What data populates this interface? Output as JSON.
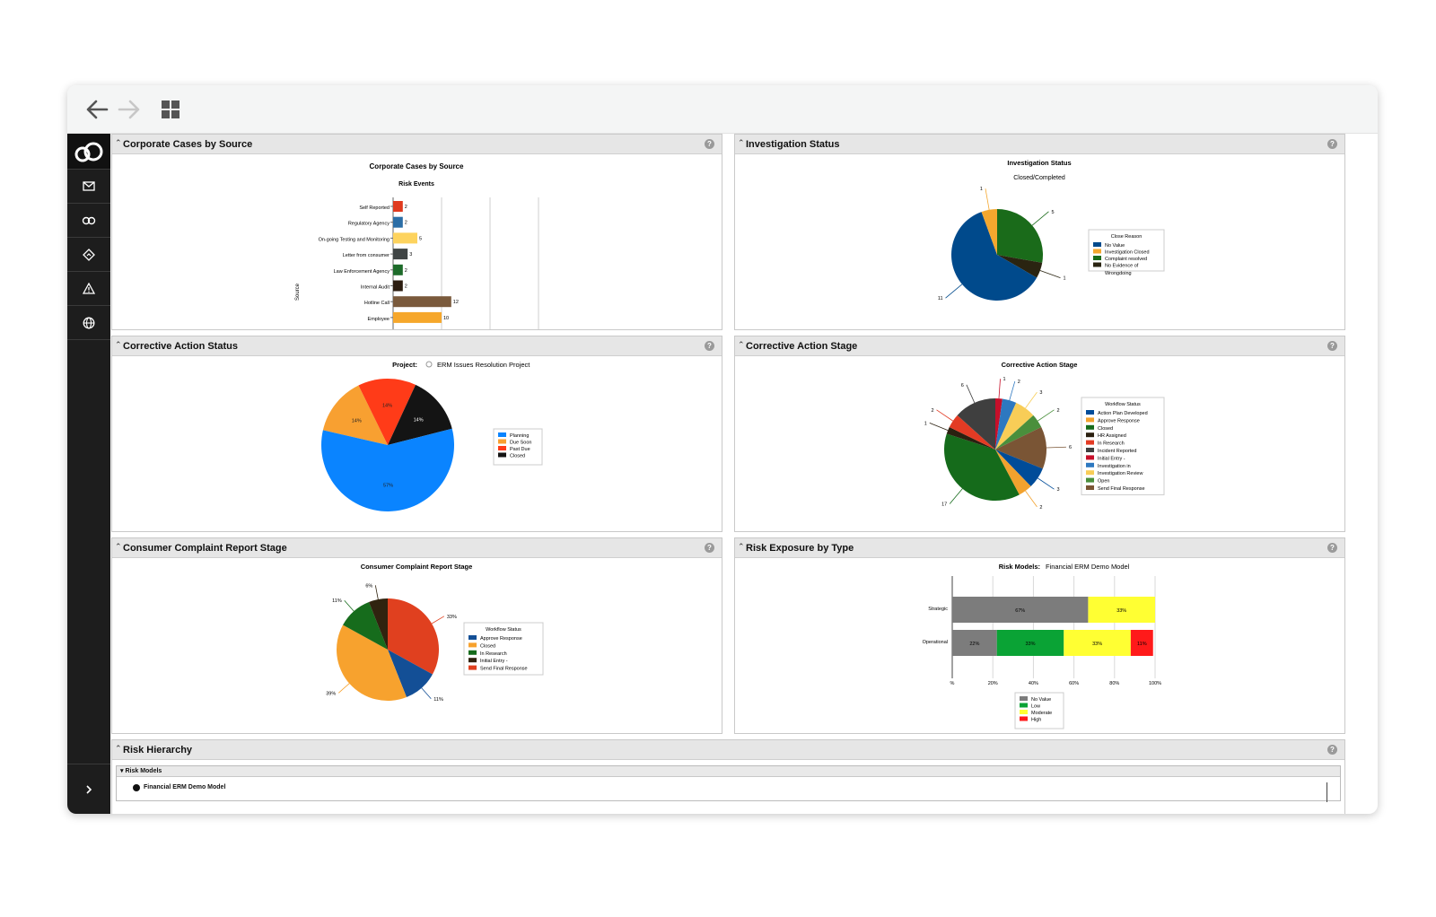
{
  "panels": {
    "p1": "Corporate Cases by Source",
    "p2": "Investigation Status",
    "p3": "Corrective Action Status",
    "p4": "Corrective Action Stage",
    "p5": "Consumer Complaint Report Stage",
    "p6": "Risk Exposure by Type",
    "p7": "Risk Hierarchy"
  },
  "risk_hierarchy": {
    "subheader": "Risk Models",
    "item": "Financial ERM Demo Model"
  },
  "colors": {
    "sidebar": "#1d1d1d",
    "panel_header": "#e6e6e6"
  },
  "chart_data": [
    {
      "type": "bar",
      "title": "Corporate Cases by Source",
      "subtitle": "Risk Events",
      "ylabel": "Source",
      "categories": [
        "Self Reported",
        "Regulatory Agency",
        "On-going Testing and Monitoring",
        "Letter from consumer",
        "Law Enforcement Agency",
        "Internal Audit",
        "Hotline Call",
        "Employee"
      ],
      "values": [
        2,
        2,
        5,
        3,
        2,
        2,
        12,
        10
      ],
      "colors": [
        "#e03a1e",
        "#2b6ea6",
        "#fdd35e",
        "#3f4444",
        "#1d6b2a",
        "#2c1d10",
        "#7a5a3c",
        "#f6a72b"
      ]
    },
    {
      "type": "pie",
      "title": "Investigation Status",
      "subtitle": "Closed/Completed",
      "legend_title": "Close Reason",
      "labels": [
        "No Value",
        "Investigation Closed",
        "Complaint resolved",
        "No Evidence of Wrongdoing"
      ],
      "values": [
        11,
        1,
        5,
        1
      ],
      "colors": [
        "#004a8c",
        "#f4a72e",
        "#1a6b1a",
        "#2a2411"
      ]
    },
    {
      "type": "pie",
      "project_label": "Project:",
      "project": "ERM Issues Resolution Project",
      "labels": [
        "Planning",
        "Due Soon",
        "Past Due",
        "Closed"
      ],
      "values": [
        57,
        14,
        14,
        14
      ],
      "value_labels": [
        "57%",
        "14%",
        "14%",
        "14%"
      ],
      "colors": [
        "#0a84ff",
        "#f8a031",
        "#ff3b18",
        "#141414"
      ]
    },
    {
      "type": "pie",
      "title": "Corrective Action Stage",
      "legend_title": "Workflow Status",
      "labels": [
        "Action Plan Developed",
        "Approve Response",
        "Closed",
        "HR Assigned",
        "In Research",
        "Incident Reported",
        "Initial Entry - Assignment",
        "Investigation in process",
        "Investigation Review",
        "Open",
        "Send Final Response"
      ],
      "values": [
        3,
        2,
        17,
        1,
        2,
        6,
        1,
        2,
        3,
        2,
        6
      ],
      "colors": [
        "#004c99",
        "#f2a22e",
        "#156b1b",
        "#2b2010",
        "#e33b24",
        "#3f3f3f",
        "#c70f2a",
        "#2d78c0",
        "#f8cd57",
        "#4a8f3c",
        "#7a5535"
      ]
    },
    {
      "type": "pie",
      "title": "Consumer Complaint Report Stage",
      "legend_title": "Workflow Status",
      "labels": [
        "Approve Response",
        "Closed",
        "In Research",
        "Initial Entry - Assignment",
        "Send Final Response"
      ],
      "values": [
        11,
        39,
        11,
        6,
        33
      ],
      "value_labels": [
        "11%",
        "39%",
        "11%",
        "6%",
        "33%"
      ],
      "colors": [
        "#134f96",
        "#f7a22e",
        "#166c1c",
        "#30230f",
        "#e0401f"
      ]
    },
    {
      "type": "bar",
      "orientation": "horizontal",
      "stacked": true,
      "percent": true,
      "title_label": "Risk Models:",
      "title_value": "Financial ERM Demo Model",
      "categories": [
        "Strategic",
        "Operational"
      ],
      "series": [
        {
          "name": "No Value",
          "values": [
            67,
            22
          ],
          "labels": [
            "67%",
            "22%"
          ],
          "color": "#7c7c7c"
        },
        {
          "name": "Low",
          "values": [
            0,
            33
          ],
          "labels": [
            "",
            "33%"
          ],
          "color": "#0aa335"
        },
        {
          "name": "Moderate",
          "values": [
            33,
            33
          ],
          "labels": [
            "33%",
            "33%"
          ],
          "color": "#ffff33"
        },
        {
          "name": "High",
          "values": [
            0,
            11
          ],
          "labels": [
            "",
            "11%"
          ],
          "color": "#ff1a1a"
        }
      ],
      "xticks": [
        "%",
        "20%",
        "40%",
        "60%",
        "80%",
        "100%"
      ]
    }
  ]
}
